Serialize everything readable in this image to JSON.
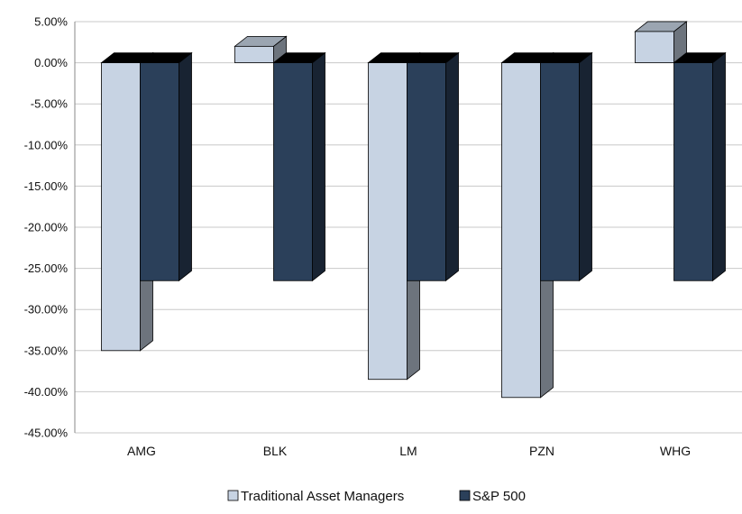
{
  "chart_data": {
    "type": "bar",
    "categories": [
      "AMG",
      "BLK",
      "LM",
      "PZN",
      "WHG"
    ],
    "series": [
      {
        "name": "Traditional Asset Managers",
        "color": "#c7d3e3",
        "values": [
          -35.0,
          2.0,
          -38.5,
          -40.7,
          3.8
        ]
      },
      {
        "name": "S&P 500",
        "color": "#2b405a",
        "values": [
          -26.5,
          -26.5,
          -26.5,
          -26.5,
          -26.5
        ]
      }
    ],
    "title": "",
    "xlabel": "",
    "ylabel": "",
    "ylim": [
      -45,
      5
    ],
    "yticks": [
      5,
      0,
      -5,
      -10,
      -15,
      -20,
      -25,
      -30,
      -35,
      -40,
      -45
    ],
    "ytick_labels": [
      "5.00%",
      "0.00%",
      "-5.00%",
      "-10.00%",
      "-15.00%",
      "-20.00%",
      "-25.00%",
      "-30.00%",
      "-35.00%",
      "-40.00%",
      "-45.00%"
    ],
    "grid": true,
    "legend": "bottom",
    "style": "3d-bar"
  }
}
